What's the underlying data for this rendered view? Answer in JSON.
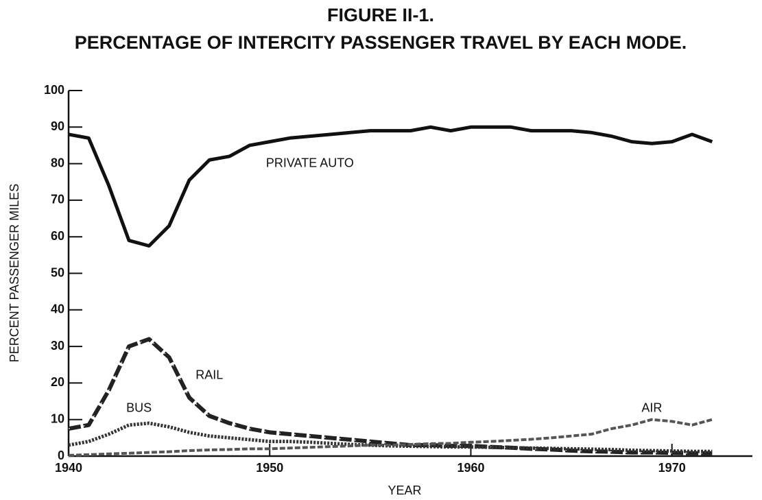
{
  "chart_data": {
    "type": "line",
    "title": "FIGURE II-1.",
    "subtitle": "PERCENTAGE OF INTERCITY PASSENGER TRAVEL BY EACH MODE.",
    "x_label": "YEAR",
    "y_label": "PERCENT PASSENGER MILES",
    "x": [
      1940,
      1941,
      1942,
      1943,
      1944,
      1945,
      1946,
      1947,
      1948,
      1949,
      1950,
      1951,
      1952,
      1953,
      1954,
      1955,
      1956,
      1957,
      1958,
      1959,
      1960,
      1961,
      1962,
      1963,
      1964,
      1965,
      1966,
      1967,
      1968,
      1969,
      1970,
      1971,
      1972
    ],
    "series": [
      {
        "name": "PRIVATE AUTO",
        "color": "#111111",
        "values": [
          88,
          87,
          74,
          59,
          57.5,
          63,
          75.5,
          81,
          82,
          85,
          86,
          87,
          87.5,
          88,
          88.5,
          89,
          89,
          89,
          90,
          89,
          90,
          90,
          90,
          89,
          89,
          89,
          88.5,
          87.5,
          86,
          85.5,
          86,
          88,
          86
        ]
      },
      {
        "name": "RAIL",
        "color": "#222222",
        "values": [
          7.5,
          8.5,
          18,
          30,
          32,
          27,
          16,
          11,
          9,
          7.5,
          6.5,
          6,
          5.5,
          5,
          4.5,
          4,
          3.5,
          3,
          3,
          2.8,
          2.8,
          2.5,
          2.3,
          2,
          1.8,
          1.5,
          1.3,
          1.2,
          1,
          1,
          0.9,
          0.8,
          0.8
        ]
      },
      {
        "name": "BUS",
        "color": "#333333",
        "values": [
          3,
          4,
          6,
          8.5,
          9,
          8,
          6.5,
          5.5,
          5,
          4.5,
          4,
          4,
          3.8,
          3.5,
          3.2,
          3,
          2.8,
          2.7,
          2.6,
          2.5,
          2.5,
          2.4,
          2.3,
          2.2,
          2.1,
          2,
          1.9,
          1.8,
          1.6,
          1.5,
          1.4,
          1.3,
          1.3
        ]
      },
      {
        "name": "AIR",
        "color": "#555555",
        "values": [
          0.2,
          0.4,
          0.6,
          0.8,
          1,
          1.2,
          1.5,
          1.7,
          1.8,
          2,
          2,
          2.2,
          2.4,
          2.6,
          2.8,
          3,
          3,
          3.2,
          3.4,
          3.5,
          3.8,
          4,
          4.3,
          4.6,
          5,
          5.5,
          6,
          7.5,
          8.5,
          10,
          9.5,
          8.5,
          10
        ]
      }
    ],
    "xlim": [
      1940,
      1974
    ],
    "xticks": [
      1940,
      1950,
      1960,
      1970
    ],
    "ylim": [
      0,
      100
    ],
    "yticks": [
      0,
      10,
      20,
      30,
      40,
      50,
      60,
      70,
      80,
      90,
      100
    ],
    "grid": false
  }
}
